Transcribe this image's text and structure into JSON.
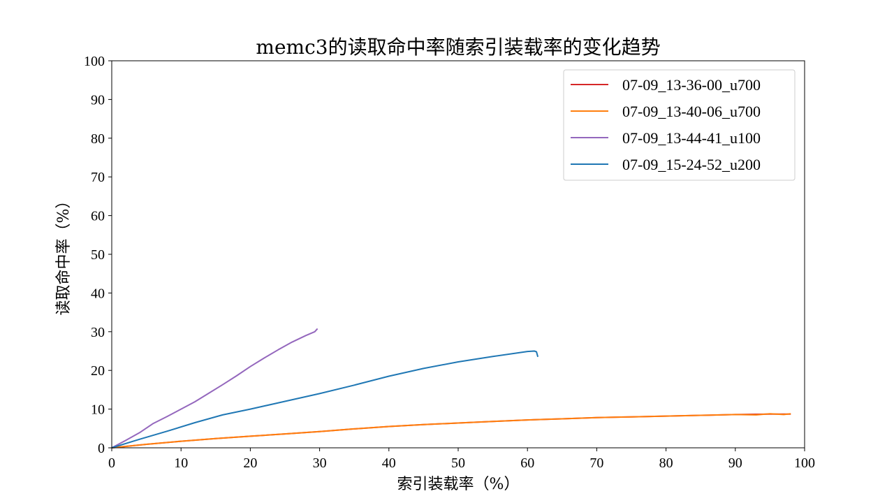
{
  "chart_data": {
    "type": "line",
    "title": "memc3的读取命中率随索引装载率的变化趋势",
    "xlabel": "索引装载率（%）",
    "ylabel": "读取命中率（%）",
    "xlim": [
      0,
      100
    ],
    "ylim": [
      0,
      100
    ],
    "xticks": [
      "0",
      "10",
      "20",
      "30",
      "40",
      "50",
      "60",
      "70",
      "80",
      "90",
      "100"
    ],
    "yticks": [
      "0",
      "10",
      "20",
      "30",
      "40",
      "50",
      "60",
      "70",
      "80",
      "90",
      "100"
    ],
    "grid": false,
    "legend_position": "top-right",
    "series": [
      {
        "name": "07-09_13-36-00_u700",
        "color": "#d62728",
        "x": [
          0,
          5,
          10,
          15,
          20,
          25,
          30,
          35,
          40,
          45,
          50,
          55,
          60,
          65,
          70,
          75,
          80,
          85,
          90,
          95,
          98
        ],
        "y": [
          0,
          0.9,
          1.7,
          2.4,
          3.0,
          3.6,
          4.2,
          4.9,
          5.5,
          6.0,
          6.4,
          6.8,
          7.2,
          7.5,
          7.8,
          8.0,
          8.2,
          8.4,
          8.6,
          8.7,
          8.7
        ]
      },
      {
        "name": "07-09_13-40-06_u700",
        "color": "#ff7f0e",
        "x": [
          0,
          5,
          10,
          15,
          20,
          25,
          30,
          35,
          40,
          45,
          50,
          55,
          60,
          65,
          70,
          75,
          80,
          85,
          90,
          93,
          95,
          97,
          98
        ],
        "y": [
          0,
          0.9,
          1.7,
          2.4,
          3.0,
          3.6,
          4.2,
          4.9,
          5.5,
          6.0,
          6.4,
          6.8,
          7.2,
          7.5,
          7.8,
          8.0,
          8.2,
          8.4,
          8.6,
          8.5,
          8.8,
          8.6,
          8.8
        ]
      },
      {
        "name": "07-09_13-44-41_u100",
        "color": "#9467bd",
        "x": [
          0,
          2,
          4,
          6,
          8,
          10,
          12,
          14,
          16,
          18,
          20,
          22,
          24,
          26,
          28,
          29.3,
          29.7
        ],
        "y": [
          0,
          1.9,
          3.9,
          6.3,
          8.1,
          10.0,
          11.9,
          14.1,
          16.3,
          18.6,
          21.0,
          23.2,
          25.3,
          27.3,
          29.0,
          30.0,
          30.8
        ]
      },
      {
        "name": "07-09_15-24-52_u200",
        "color": "#1f77b4",
        "x": [
          0,
          4,
          8,
          12,
          16,
          20,
          25,
          30,
          35,
          40,
          45,
          50,
          55,
          60,
          61,
          61.3,
          61.5
        ],
        "y": [
          0,
          2.2,
          4.3,
          6.5,
          8.5,
          10.0,
          12.0,
          14.0,
          16.2,
          18.5,
          20.5,
          22.2,
          23.6,
          24.9,
          25.0,
          24.8,
          23.5
        ]
      }
    ]
  }
}
